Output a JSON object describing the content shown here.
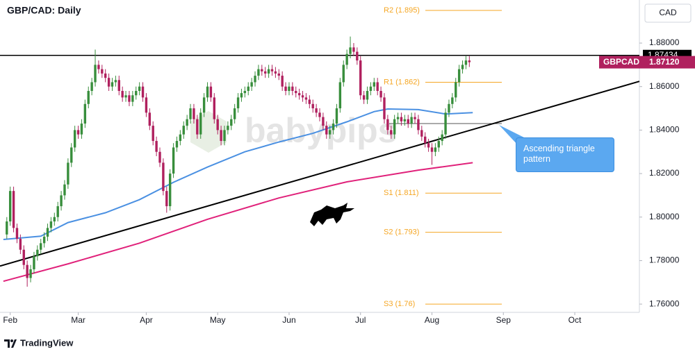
{
  "chart_data": {
    "type": "candlestick",
    "title": "GBP/CAD: Daily",
    "currency": "CAD",
    "symbol": "GBPCAD",
    "up_color": "#388e3c",
    "down_color": "#b0205e",
    "xlim": [
      -2,
      186
    ],
    "xticks": [
      {
        "value": 1,
        "label": "Feb"
      },
      {
        "value": 21,
        "label": "Mar"
      },
      {
        "value": 41,
        "label": "Apr"
      },
      {
        "value": 62,
        "label": "May"
      },
      {
        "value": 83,
        "label": "Jun"
      },
      {
        "value": 104,
        "label": "Jul"
      },
      {
        "value": 125,
        "label": "Aug"
      },
      {
        "value": 146,
        "label": "Sep"
      },
      {
        "value": 167,
        "label": "Oct"
      }
    ],
    "ylim": [
      1.7562,
      1.8998
    ],
    "yticks": [
      {
        "value": 1.76,
        "label": "1.76000"
      },
      {
        "value": 1.78,
        "label": "1.78000"
      },
      {
        "value": 1.8,
        "label": "1.80000"
      },
      {
        "value": 1.82,
        "label": "1.82000"
      },
      {
        "value": 1.84,
        "label": "1.84000"
      },
      {
        "value": 1.86,
        "label": "1.86000"
      },
      {
        "value": 1.88,
        "label": "1.88000"
      }
    ],
    "open": [
      1.792,
      1.798,
      1.812,
      1.795,
      1.79,
      1.785,
      1.778,
      1.772,
      1.776,
      1.782,
      1.785,
      1.788,
      1.791,
      1.795,
      1.798,
      1.8,
      1.805,
      1.81,
      1.815,
      1.825,
      1.832,
      1.84,
      1.838,
      1.843,
      1.852,
      1.858,
      1.862,
      1.87,
      1.868,
      1.866,
      1.864,
      1.86,
      1.862,
      1.863,
      1.858,
      1.855,
      1.856,
      1.853,
      1.856,
      1.858,
      1.86,
      1.855,
      1.848,
      1.842,
      1.835,
      1.83,
      1.825,
      1.812,
      1.805,
      1.82,
      1.832,
      1.835,
      1.838,
      1.842,
      1.845,
      1.85,
      1.845,
      1.838,
      1.848,
      1.855,
      1.86,
      1.855,
      1.845,
      1.84,
      1.835,
      1.84,
      1.842,
      1.845,
      1.85,
      1.855,
      1.857,
      1.858,
      1.86,
      1.862,
      1.865,
      1.868,
      1.867,
      1.866,
      1.868,
      1.867,
      1.866,
      1.865,
      1.86,
      1.858,
      1.86,
      1.858,
      1.857,
      1.856,
      1.855,
      1.854,
      1.852,
      1.85,
      1.848,
      1.846,
      1.842,
      1.838,
      1.84,
      1.843,
      1.85,
      1.862,
      1.87,
      1.875,
      1.878,
      1.876,
      1.872,
      1.856,
      1.854,
      1.858,
      1.86,
      1.862,
      1.858,
      1.855,
      1.845,
      1.84,
      1.838,
      1.845,
      1.846,
      1.844,
      1.845,
      1.843,
      1.846,
      1.845,
      1.84,
      1.837,
      1.834,
      1.832,
      1.83,
      1.832,
      1.835,
      1.838,
      1.848,
      1.852,
      1.855,
      1.862,
      1.868,
      1.87,
      1.872
    ],
    "high": [
      1.8,
      1.814,
      1.814,
      1.797,
      1.792,
      1.787,
      1.78,
      1.778,
      1.784,
      1.787,
      1.79,
      1.793,
      1.797,
      1.8,
      1.802,
      1.807,
      1.812,
      1.817,
      1.827,
      1.834,
      1.842,
      1.842,
      1.845,
      1.854,
      1.86,
      1.864,
      1.877,
      1.872,
      1.87,
      1.868,
      1.866,
      1.864,
      1.865,
      1.865,
      1.86,
      1.858,
      1.858,
      1.858,
      1.86,
      1.862,
      1.862,
      1.857,
      1.85,
      1.844,
      1.837,
      1.832,
      1.827,
      1.814,
      1.822,
      1.834,
      1.837,
      1.84,
      1.844,
      1.847,
      1.852,
      1.852,
      1.847,
      1.85,
      1.857,
      1.862,
      1.862,
      1.857,
      1.847,
      1.842,
      1.842,
      1.844,
      1.847,
      1.852,
      1.857,
      1.859,
      1.86,
      1.862,
      1.864,
      1.867,
      1.87,
      1.87,
      1.869,
      1.87,
      1.87,
      1.869,
      1.868,
      1.867,
      1.862,
      1.862,
      1.862,
      1.86,
      1.859,
      1.858,
      1.857,
      1.856,
      1.854,
      1.852,
      1.85,
      1.848,
      1.844,
      1.842,
      1.845,
      1.852,
      1.864,
      1.872,
      1.877,
      1.883,
      1.88,
      1.878,
      1.874,
      1.858,
      1.86,
      1.862,
      1.864,
      1.864,
      1.86,
      1.857,
      1.847,
      1.842,
      1.847,
      1.848,
      1.848,
      1.847,
      1.847,
      1.848,
      1.848,
      1.847,
      1.842,
      1.839,
      1.836,
      1.834,
      1.834,
      1.837,
      1.84,
      1.85,
      1.854,
      1.857,
      1.864,
      1.87,
      1.872,
      1.874,
      1.874
    ],
    "low": [
      1.79,
      1.796,
      1.793,
      1.788,
      1.783,
      1.776,
      1.768,
      1.77,
      1.774,
      1.78,
      1.783,
      1.786,
      1.789,
      1.793,
      1.796,
      1.798,
      1.803,
      1.808,
      1.813,
      1.823,
      1.83,
      1.836,
      1.836,
      1.841,
      1.85,
      1.856,
      1.86,
      1.866,
      1.864,
      1.862,
      1.858,
      1.858,
      1.86,
      1.856,
      1.853,
      1.853,
      1.851,
      1.851,
      1.854,
      1.856,
      1.853,
      1.846,
      1.84,
      1.833,
      1.828,
      1.823,
      1.81,
      1.802,
      1.803,
      1.818,
      1.83,
      1.833,
      1.836,
      1.84,
      1.843,
      1.843,
      1.836,
      1.836,
      1.846,
      1.853,
      1.853,
      1.843,
      1.838,
      1.833,
      1.833,
      1.838,
      1.84,
      1.843,
      1.848,
      1.853,
      1.855,
      1.856,
      1.858,
      1.86,
      1.863,
      1.865,
      1.864,
      1.864,
      1.865,
      1.864,
      1.863,
      1.858,
      1.856,
      1.856,
      1.856,
      1.855,
      1.854,
      1.853,
      1.852,
      1.85,
      1.848,
      1.846,
      1.844,
      1.84,
      1.836,
      1.836,
      1.838,
      1.841,
      1.848,
      1.86,
      1.868,
      1.873,
      1.874,
      1.87,
      1.854,
      1.852,
      1.852,
      1.856,
      1.858,
      1.856,
      1.853,
      1.843,
      1.838,
      1.836,
      1.836,
      1.843,
      1.842,
      1.842,
      1.841,
      1.841,
      1.843,
      1.838,
      1.835,
      1.832,
      1.83,
      1.824,
      1.828,
      1.83,
      1.833,
      1.836,
      1.846,
      1.85,
      1.853,
      1.86,
      1.866,
      1.868,
      1.869
    ],
    "close": [
      1.798,
      1.812,
      1.795,
      1.79,
      1.785,
      1.778,
      1.772,
      1.776,
      1.782,
      1.785,
      1.788,
      1.791,
      1.795,
      1.798,
      1.8,
      1.805,
      1.81,
      1.815,
      1.825,
      1.832,
      1.84,
      1.838,
      1.843,
      1.852,
      1.858,
      1.862,
      1.87,
      1.868,
      1.866,
      1.864,
      1.86,
      1.862,
      1.863,
      1.858,
      1.855,
      1.856,
      1.853,
      1.856,
      1.858,
      1.86,
      1.855,
      1.848,
      1.842,
      1.835,
      1.83,
      1.825,
      1.812,
      1.805,
      1.82,
      1.832,
      1.835,
      1.838,
      1.842,
      1.845,
      1.85,
      1.845,
      1.838,
      1.848,
      1.855,
      1.86,
      1.855,
      1.845,
      1.84,
      1.835,
      1.84,
      1.842,
      1.845,
      1.85,
      1.855,
      1.857,
      1.858,
      1.86,
      1.862,
      1.865,
      1.868,
      1.867,
      1.866,
      1.868,
      1.867,
      1.866,
      1.865,
      1.86,
      1.858,
      1.86,
      1.858,
      1.857,
      1.856,
      1.855,
      1.854,
      1.852,
      1.85,
      1.848,
      1.846,
      1.842,
      1.838,
      1.84,
      1.843,
      1.85,
      1.862,
      1.87,
      1.875,
      1.878,
      1.876,
      1.872,
      1.856,
      1.854,
      1.858,
      1.86,
      1.862,
      1.858,
      1.855,
      1.845,
      1.84,
      1.838,
      1.845,
      1.846,
      1.844,
      1.845,
      1.843,
      1.846,
      1.845,
      1.84,
      1.837,
      1.834,
      1.832,
      1.83,
      1.832,
      1.835,
      1.838,
      1.848,
      1.852,
      1.855,
      1.862,
      1.868,
      1.87,
      1.872,
      1.8712
    ],
    "last_price": {
      "value": 1.8712,
      "label": "1.87120"
    },
    "resistance": {
      "value": 1.87434,
      "label": "1.87434",
      "color": "#000000"
    },
    "lines": [
      {
        "color": "#4a90e2",
        "x": [
          -1,
          10,
          18,
          29,
          39,
          49,
          59,
          70,
          80,
          90,
          100,
          108,
          112,
          121,
          129,
          137
        ],
        "values": [
          1.7897,
          1.7912,
          1.7975,
          1.802,
          1.808,
          1.816,
          1.823,
          1.83,
          1.8345,
          1.8385,
          1.8438,
          1.8485,
          1.8497,
          1.8494,
          1.8474,
          1.848
        ]
      },
      {
        "color": "#e0217a",
        "x": [
          -1,
          18,
          39,
          59,
          80,
          100,
          121,
          137
        ],
        "values": [
          1.7705,
          1.7785,
          1.788,
          1.799,
          1.8088,
          1.8162,
          1.8216,
          1.825
        ]
      }
    ],
    "trendline": {
      "color": "#000000",
      "x": [
        -2,
        186
      ],
      "values": [
        1.7775,
        1.8624
      ]
    },
    "pivot": 1.843,
    "levels": [
      {
        "label": "R2 (1.895)",
        "value": 1.895
      },
      {
        "label": "R1 (1.862)",
        "value": 1.862
      },
      {
        "label": "S1 (1.811)",
        "value": 1.811
      },
      {
        "label": "S2 (1.793)",
        "value": 1.793
      },
      {
        "label": "S3 (1.76)",
        "value": 1.76
      }
    ],
    "level_color": "#f5a623",
    "annotation": "Ascending triangle pattern",
    "watermark": "babypips",
    "footer": "TradingView"
  }
}
